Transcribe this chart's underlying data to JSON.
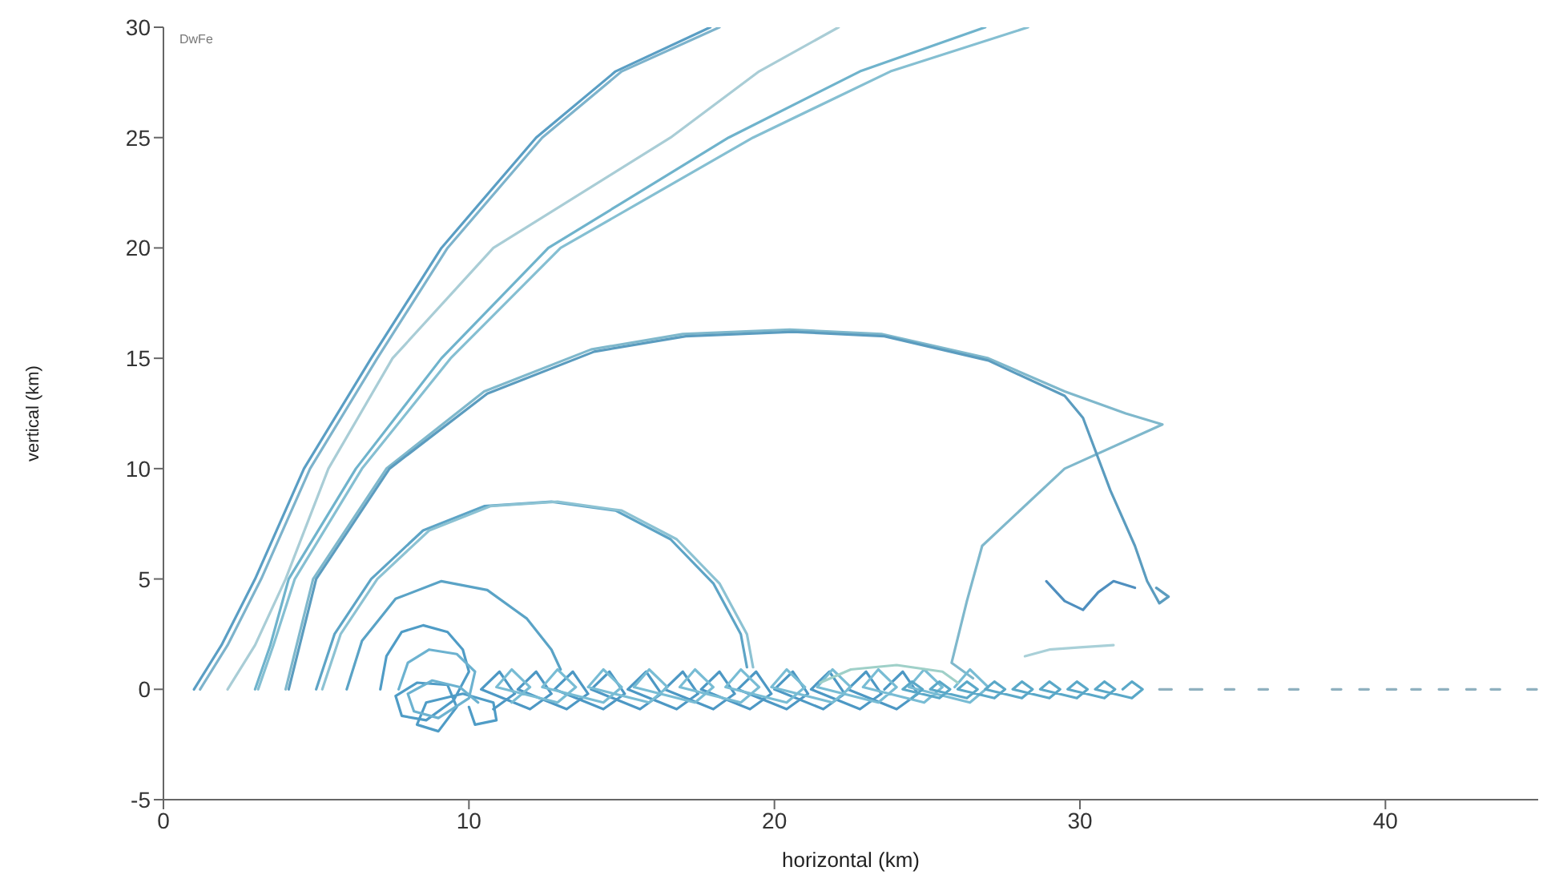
{
  "chart_data": {
    "type": "line",
    "xlabel": "horizontal (km)",
    "ylabel": "vertical (km)",
    "annotations": [
      "DwFe"
    ],
    "xlim": [
      0,
      45
    ],
    "xticks": [
      0,
      10,
      20,
      30,
      40
    ],
    "ylim": [
      -5,
      30
    ],
    "yticks": [
      -5,
      0,
      5,
      10,
      15,
      20,
      25,
      30
    ],
    "line_style": "solid",
    "marker": "none",
    "series": [
      {
        "color": "#5a9ec4",
        "x": [
          1.0,
          1.9,
          3.0,
          4.6,
          6.8,
          9.1,
          12.2,
          14.8,
          17.9
        ],
        "values": [
          0,
          2,
          5,
          10,
          15,
          20,
          25,
          28,
          30
        ]
      },
      {
        "color": "#7db3cc",
        "x": [
          1.2,
          2.1,
          3.2,
          4.8,
          7.0,
          9.3,
          12.4,
          15.0,
          18.2
        ],
        "values": [
          0,
          2,
          5,
          10,
          15,
          20,
          25,
          28,
          30
        ]
      },
      {
        "color": "#a9cdd6",
        "x": [
          2.1,
          3.0,
          4.0,
          5.4,
          7.5,
          10.8,
          16.6,
          19.5,
          22.1
        ],
        "values": [
          0,
          2,
          5,
          10,
          15,
          20,
          25,
          28,
          30
        ]
      },
      {
        "color": "#6fb3cc",
        "x": [
          3.0,
          3.5,
          4.1,
          6.3,
          9.1,
          12.6,
          18.5,
          22.8,
          26.9
        ],
        "values": [
          0,
          2,
          5,
          10,
          15,
          20,
          25,
          28,
          30
        ]
      },
      {
        "color": "#85bfd2",
        "x": [
          3.1,
          3.6,
          4.3,
          6.5,
          9.4,
          13.0,
          19.3,
          23.8,
          28.3
        ],
        "values": [
          0,
          2,
          5,
          10,
          15,
          20,
          25,
          28,
          30
        ]
      },
      {
        "color": "#7fb8cc",
        "x": [
          4.0,
          4.9,
          7.3,
          10.5,
          14.0,
          17.0,
          20.5,
          23.5,
          27.0,
          29.5,
          31.5,
          32.7,
          29.5,
          26.8,
          26.3,
          25.8,
          26.5
        ],
        "values": [
          0,
          5,
          10,
          13.5,
          15.4,
          16.1,
          16.3,
          16.1,
          15.0,
          13.5,
          12.5,
          12.0,
          10.0,
          6.5,
          4.0,
          1.2,
          0.5
        ]
      },
      {
        "color": "#5b9cbf",
        "x": [
          4.1,
          5.0,
          7.4,
          10.6,
          14.1,
          17.1,
          20.6,
          23.6,
          27.0,
          29.5,
          30.1,
          31.0,
          31.8,
          32.2,
          32.6,
          32.9,
          32.5
        ],
        "values": [
          0,
          5,
          10,
          13.4,
          15.3,
          16.0,
          16.2,
          16.0,
          14.9,
          13.3,
          12.3,
          9.0,
          6.5,
          4.9,
          3.9,
          4.2,
          4.6
        ]
      },
      {
        "color": "#5da4c6",
        "x": [
          5.0,
          5.6,
          6.8,
          8.5,
          10.5,
          12.7,
          14.8,
          16.6,
          18.0,
          18.9,
          19.1
        ],
        "values": [
          0,
          2.5,
          5,
          7.2,
          8.3,
          8.5,
          8.1,
          6.8,
          4.8,
          2.5,
          1.0
        ]
      },
      {
        "color": "#8cc2d3",
        "x": [
          5.2,
          5.8,
          7.0,
          8.7,
          10.7,
          12.9,
          15.0,
          16.8,
          18.2,
          19.1,
          19.3
        ],
        "values": [
          0,
          2.5,
          5,
          7.2,
          8.3,
          8.5,
          8.1,
          6.8,
          4.8,
          2.5,
          1.0
        ]
      },
      {
        "color": "#5aa3c6",
        "x": [
          6.0,
          6.5,
          7.6,
          9.1,
          10.6,
          11.9,
          12.7,
          13.0
        ],
        "values": [
          0,
          2.2,
          4.1,
          4.9,
          4.5,
          3.2,
          1.8,
          0.9
        ]
      },
      {
        "color": "#4f9cc6",
        "x": [
          7.1,
          7.3,
          7.8,
          8.5,
          9.3,
          9.8,
          10.0,
          9.5,
          8.6,
          7.8,
          7.6,
          8.3,
          9.3,
          9.6,
          9.0,
          8.3,
          8.6,
          9.8,
          10.8,
          10.9,
          10.2,
          10.0
        ],
        "values": [
          0,
          1.5,
          2.6,
          2.9,
          2.6,
          1.8,
          0.8,
          -0.5,
          -1.4,
          -1.2,
          -0.3,
          0.3,
          0.2,
          -0.8,
          -1.9,
          -1.6,
          -0.6,
          -0.2,
          -0.6,
          -1.4,
          -1.6,
          -0.8
        ]
      },
      {
        "color": "#6cb2d0",
        "x": [
          7.7,
          8.0,
          8.7,
          9.6,
          10.2,
          10.0,
          9.0,
          8.2,
          8.0,
          8.8,
          9.7,
          10.3
        ],
        "values": [
          0,
          1.2,
          1.8,
          1.6,
          0.8,
          -0.4,
          -1.3,
          -1.0,
          -0.2,
          0.4,
          0.1,
          -0.6
        ]
      },
      {
        "color": "#4d98c4",
        "x": [
          10.8,
          11.5,
          11.0,
          10.4,
          12.0,
          12.7,
          12.2,
          11.6,
          13.2,
          13.9,
          13.4,
          12.8,
          14.4,
          15.1,
          14.6,
          14.0,
          15.6,
          16.3,
          15.8,
          15.2,
          16.8,
          17.5,
          17.0,
          16.4,
          18.0,
          18.7,
          18.2,
          17.6,
          19.2,
          19.9,
          19.4,
          18.8,
          20.4,
          21.1,
          20.6,
          20.0,
          21.6,
          22.3,
          21.8,
          21.2,
          22.8,
          23.5,
          23.0,
          22.4,
          24.0,
          24.7,
          24.2,
          23.6
        ],
        "values": [
          -0.9,
          -0.2,
          0.8,
          0,
          -0.9,
          -0.2,
          0.8,
          0,
          -0.9,
          -0.2,
          0.8,
          0,
          -0.9,
          -0.2,
          0.8,
          0,
          -0.9,
          -0.2,
          0.8,
          0,
          -0.9,
          -0.2,
          0.8,
          0,
          -0.9,
          -0.2,
          0.8,
          0,
          -0.9,
          -0.2,
          0.8,
          0,
          -0.9,
          -0.2,
          0.8,
          0,
          -0.9,
          -0.2,
          0.8,
          0,
          -0.9,
          -0.2,
          0.8,
          0,
          -0.9,
          -0.2,
          0.8,
          0
        ]
      },
      {
        "color": "#78bcd4",
        "x": [
          11.4,
          12.0,
          11.4,
          10.9,
          12.9,
          13.5,
          12.9,
          12.4,
          14.4,
          15.0,
          14.4,
          13.9,
          15.9,
          16.5,
          15.9,
          15.4,
          17.4,
          18.0,
          17.4,
          16.9,
          18.9,
          19.5,
          18.9,
          18.4,
          20.4,
          21.0,
          20.4,
          19.9,
          21.9,
          22.5,
          21.9,
          21.4,
          23.4,
          24.0,
          23.4,
          22.9,
          24.9,
          25.5,
          24.9,
          24.4,
          26.4,
          27.0,
          26.4,
          25.9
        ],
        "values": [
          -0.6,
          0.1,
          0.9,
          0.1,
          -0.6,
          0.1,
          0.9,
          0.1,
          -0.6,
          0.1,
          0.9,
          0.1,
          -0.6,
          0.1,
          0.9,
          0.1,
          -0.6,
          0.1,
          0.9,
          0.1,
          -0.6,
          0.1,
          0.9,
          0.1,
          -0.6,
          0.1,
          0.9,
          0.1,
          -0.6,
          0.1,
          0.9,
          0.1,
          -0.6,
          0.1,
          0.9,
          0.1,
          -0.6,
          0.1,
          0.9,
          0.1,
          -0.6,
          0.1,
          0.9,
          0.1
        ]
      },
      {
        "color": "#5aa8c8",
        "x": [
          24.5,
          24.85,
          24.5,
          24.2,
          25.4,
          25.75,
          25.4,
          25.1,
          26.3,
          26.65,
          26.3,
          26.0,
          27.2,
          27.55,
          27.2,
          26.9,
          28.1,
          28.45,
          28.1,
          27.8,
          29.0,
          29.35,
          29.0,
          28.7,
          29.9,
          30.25,
          29.9,
          29.6,
          30.8,
          31.15,
          30.8,
          30.5,
          31.7,
          32.05,
          31.7,
          31.4
        ],
        "values": [
          -0.4,
          0,
          0.35,
          0,
          -0.4,
          0,
          0.35,
          0,
          -0.4,
          0,
          0.35,
          0,
          -0.4,
          0,
          0.35,
          0,
          -0.4,
          0,
          0.35,
          0,
          -0.4,
          0,
          0.35,
          0,
          -0.4,
          0,
          0.35,
          0,
          -0.4,
          0,
          0.35,
          0,
          -0.4,
          0,
          0.35,
          0
        ]
      },
      {
        "color": "#8fb0bf",
        "x": [
          32.6,
          33.0,
          33.1,
          33.6,
          34.0,
          34.1,
          34.75,
          35.05,
          35.1,
          35.85,
          36.15,
          36.2,
          36.85,
          37.15,
          37.2,
          38.25,
          38.55,
          38.6,
          39.15,
          39.45,
          39.5,
          40.05,
          40.35,
          40.4,
          40.85,
          41.15,
          41.2,
          41.75,
          42.05,
          42.1,
          42.65,
          42.95,
          43.0,
          43.45,
          43.75,
          43.8,
          44.65,
          44.95
        ],
        "values": [
          0,
          0,
          null,
          0,
          0,
          null,
          0,
          0,
          null,
          0,
          0,
          null,
          0,
          0,
          null,
          0,
          0,
          null,
          0,
          0,
          null,
          0,
          0,
          null,
          0,
          0,
          null,
          0,
          0,
          null,
          0,
          0,
          null,
          0,
          0,
          null,
          0,
          0
        ]
      },
      {
        "color": "#4f8fbf",
        "x": [
          28.9,
          29.5,
          30.1,
          30.6,
          31.1,
          31.8
        ],
        "values": [
          4.9,
          4.0,
          3.6,
          4.4,
          4.9,
          4.6
        ]
      },
      {
        "color": "#a9d0d8",
        "x": [
          28.2,
          29.0,
          30.0,
          31.1
        ],
        "values": [
          1.5,
          1.8,
          1.9,
          2.0
        ]
      },
      {
        "color": "#9fd0c8",
        "x": [
          21.5,
          22.5,
          24.0,
          25.5,
          26.0
        ],
        "values": [
          0.3,
          0.9,
          1.1,
          0.8,
          0.3
        ]
      }
    ]
  }
}
